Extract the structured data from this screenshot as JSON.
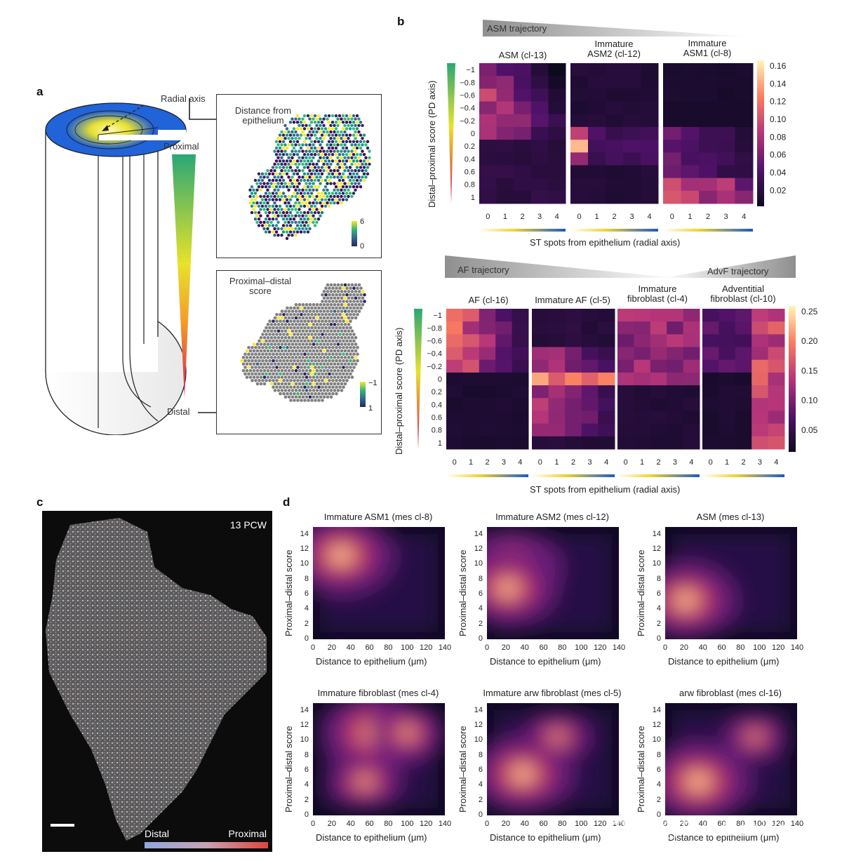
{
  "panel_labels": {
    "a": "a",
    "b": "b",
    "c": "c",
    "d": "d"
  },
  "panel_a": {
    "radial_axis": "Radial axis",
    "distance_label": "Distance from\nepithelium",
    "proximal": "Proximal",
    "distal": "Distal",
    "pd_score_label": "Proximal–distal\nscore",
    "distance_scale": {
      "max": "6",
      "min": "0"
    },
    "pd_scale": {
      "top": "−1",
      "bottom": "1"
    }
  },
  "panel_b": {
    "asm_trajectory": "ASM trajectory",
    "af_trajectory": "AF trajectory",
    "advf_trajectory": "AdvF trajectory",
    "y_axis_label": "Distal–proximal score (PD axis)",
    "x_axis_label": "ST spots from epithelium (radial axis)",
    "y_ticks": [
      "−1",
      "−0.8",
      "−0.6",
      "−0.4",
      "−0.2",
      "0",
      "0.2",
      "0.4",
      "0.6",
      "0.8",
      "1"
    ],
    "x_ticks": [
      "0",
      "1",
      "2",
      "3",
      "4"
    ],
    "top_titles": [
      "ASM (cl-13)",
      "Immature\nASM2 (cl-12)",
      "Immature\nASM1 (cl-8)"
    ],
    "top_colorbar": [
      "0.16",
      "0.14",
      "0.12",
      "0.10",
      "0.08",
      "0.06",
      "0.04",
      "0.02"
    ],
    "bottom_titles": [
      "AF (cl-16)",
      "Immature AF (cl-5)",
      "Immature\nfibroblast (cl-4)",
      "Adventitial\nfibroblast (cl-10)"
    ],
    "bottom_colorbar": [
      "0.25",
      "0.20",
      "0.15",
      "0.10",
      "0.05"
    ]
  },
  "panel_c": {
    "stage": "13 PCW",
    "legend_left": "Distal",
    "legend_right": "Proximal"
  },
  "panel_d": {
    "plots": [
      {
        "title": "Immature ASM1 (mes cl-8)",
        "peaks": [
          [
            30,
            11.2,
            0.95
          ]
        ]
      },
      {
        "title": "Immature ASM2 (mes cl-12)",
        "peaks": [
          [
            25,
            9.5,
            0.9
          ],
          [
            22,
            6.8,
            0.85
          ]
        ]
      },
      {
        "title": "ASM (mes cl-13)",
        "peaks": [
          [
            22,
            5.2,
            0.9
          ]
        ]
      },
      {
        "title": "Immature fibroblast (mes cl-4)",
        "peaks": [
          [
            65,
            11,
            0.95
          ],
          [
            100,
            11,
            0.55
          ],
          [
            55,
            4.5,
            0.55
          ]
        ]
      },
      {
        "title": "Immature arw fibroblast (mes cl-5)",
        "peaks": [
          [
            38,
            5.5,
            0.9
          ],
          [
            75,
            10.5,
            0.45
          ]
        ]
      },
      {
        "title": "arw fibroblast (mes cl-16)",
        "peaks": [
          [
            35,
            4.5,
            0.95
          ],
          [
            95,
            10.5,
            0.4
          ]
        ]
      }
    ],
    "y_label": "Proximal–distal score",
    "x_label": "Distance to epithelium (μm)",
    "x_ticks": [
      "0",
      "20",
      "40",
      "60",
      "80",
      "100",
      "120",
      "140"
    ],
    "y_ticks": [
      "14",
      "12",
      "10",
      "8",
      "6",
      "4",
      "2",
      "0"
    ]
  },
  "watermark": "知乎 @Evil Genius",
  "colors": {
    "magma_dark": "#0d0a1f",
    "magma_mid": "#b5367a",
    "magma_light": "#fcf6b8",
    "viridis_low": "#2a2560",
    "viridis_high": "#dfe32a",
    "green": "#2aa776"
  }
}
